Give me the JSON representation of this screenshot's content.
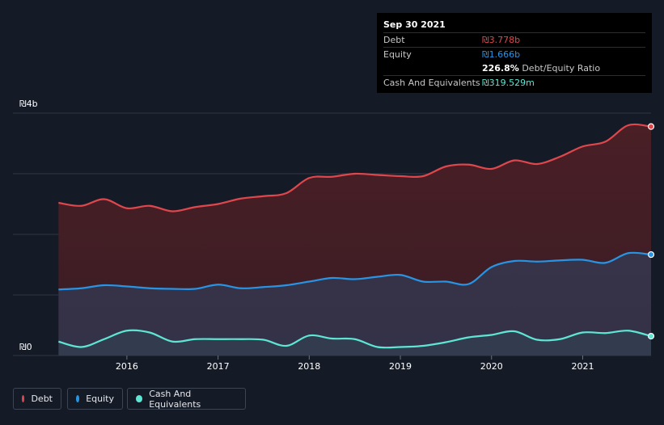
{
  "tooltip": {
    "date": "Sep 30 2021",
    "debt_label": "Debt",
    "debt_value": "₪3.778b",
    "equity_label": "Equity",
    "equity_value": "₪1.666b",
    "ratio_value": "226.8%",
    "ratio_label": "Debt/Equity Ratio",
    "cash_label": "Cash And Equivalents",
    "cash_value": "₪319.529m"
  },
  "legend": {
    "debt": "Debt",
    "equity": "Equity",
    "cash": "Cash And Equivalents"
  },
  "colors": {
    "debt": "#e0474c",
    "equity": "#2894e4",
    "cash": "#5ee6d4",
    "background": "#151b26"
  },
  "chart_data": {
    "type": "area",
    "y_tick_labels": [
      "₪0",
      "₪4b"
    ],
    "ylim": [
      0,
      4
    ],
    "x_tick_labels": [
      "2016",
      "2017",
      "2018",
      "2019",
      "2020",
      "2021"
    ],
    "x_tick_values": [
      2016,
      2017,
      2018,
      2019,
      2020,
      2021
    ],
    "xlim": [
      2014.75,
      2021.75
    ],
    "grid": true,
    "legend_position": "bottom-left",
    "x": [
      2015.25,
      2015.5,
      2015.75,
      2016.0,
      2016.25,
      2016.5,
      2016.75,
      2017.0,
      2017.25,
      2017.5,
      2017.75,
      2018.0,
      2018.25,
      2018.5,
      2018.75,
      2019.0,
      2019.25,
      2019.5,
      2019.75,
      2020.0,
      2020.25,
      2020.5,
      2020.75,
      2021.0,
      2021.25,
      2021.5,
      2021.75
    ],
    "series": [
      {
        "name": "Debt",
        "values": [
          2.52,
          2.47,
          2.58,
          2.43,
          2.47,
          2.38,
          2.45,
          2.5,
          2.59,
          2.63,
          2.68,
          2.93,
          2.95,
          3.0,
          2.98,
          2.96,
          2.96,
          3.12,
          3.15,
          3.08,
          3.22,
          3.16,
          3.28,
          3.45,
          3.53,
          3.8,
          3.778
        ]
      },
      {
        "name": "Equity",
        "values": [
          1.09,
          1.11,
          1.16,
          1.14,
          1.11,
          1.1,
          1.1,
          1.17,
          1.11,
          1.13,
          1.16,
          1.22,
          1.28,
          1.26,
          1.3,
          1.33,
          1.22,
          1.22,
          1.18,
          1.46,
          1.56,
          1.55,
          1.57,
          1.58,
          1.53,
          1.69,
          1.666
        ]
      },
      {
        "name": "Cash And Equivalents",
        "values": [
          0.23,
          0.14,
          0.27,
          0.41,
          0.38,
          0.23,
          0.27,
          0.27,
          0.27,
          0.26,
          0.16,
          0.33,
          0.28,
          0.27,
          0.14,
          0.14,
          0.16,
          0.22,
          0.3,
          0.34,
          0.4,
          0.26,
          0.27,
          0.38,
          0.37,
          0.41,
          0.3195
        ]
      }
    ]
  }
}
